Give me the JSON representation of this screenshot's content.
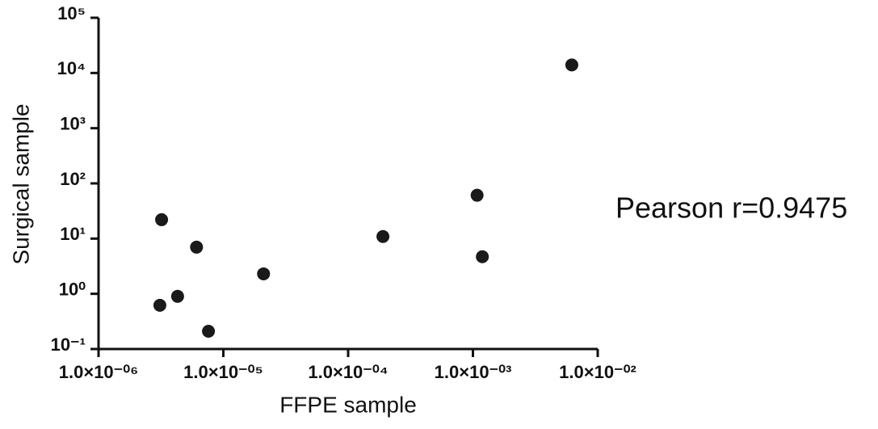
{
  "chart_data": {
    "type": "scatter",
    "x_label": "FFPE sample",
    "y_label": "Surgical sample",
    "annotation": "Pearson r=0.9475",
    "log_x": true,
    "log_y": true,
    "color": "#1a1a1a",
    "x": [
      3.2e-06,
      6.1e-06,
      4.3e-06,
      3.1e-06,
      7.6e-06,
      2.1e-05,
      0.00019,
      0.00108,
      0.00119,
      0.0062
    ],
    "values": [
      22,
      7.0,
      0.9,
      0.62,
      0.21,
      2.3,
      10.9,
      61,
      4.7,
      14000
    ],
    "xlim": [
      1e-06,
      0.01
    ],
    "ylim": [
      0.1,
      100000
    ],
    "xticks": [
      {
        "value": 1e-06,
        "label": "1.0×10⁻⁰⁶"
      },
      {
        "value": 1e-05,
        "label": "1.0×10⁻⁰⁵"
      },
      {
        "value": 0.0001,
        "label": "1.0×10⁻⁰⁴"
      },
      {
        "value": 0.001,
        "label": "1.0×10⁻⁰³"
      },
      {
        "value": 0.01,
        "label": "1.0×10⁻⁰²"
      }
    ],
    "yticks": [
      {
        "value": 0.1,
        "label": "10⁻¹"
      },
      {
        "value": 1,
        "label": "10⁰"
      },
      {
        "value": 10,
        "label": "10¹"
      },
      {
        "value": 100,
        "label": "10²"
      },
      {
        "value": 1000,
        "label": "10³"
      },
      {
        "value": 10000,
        "label": "10⁴"
      },
      {
        "value": 100000,
        "label": "10⁵"
      }
    ]
  }
}
